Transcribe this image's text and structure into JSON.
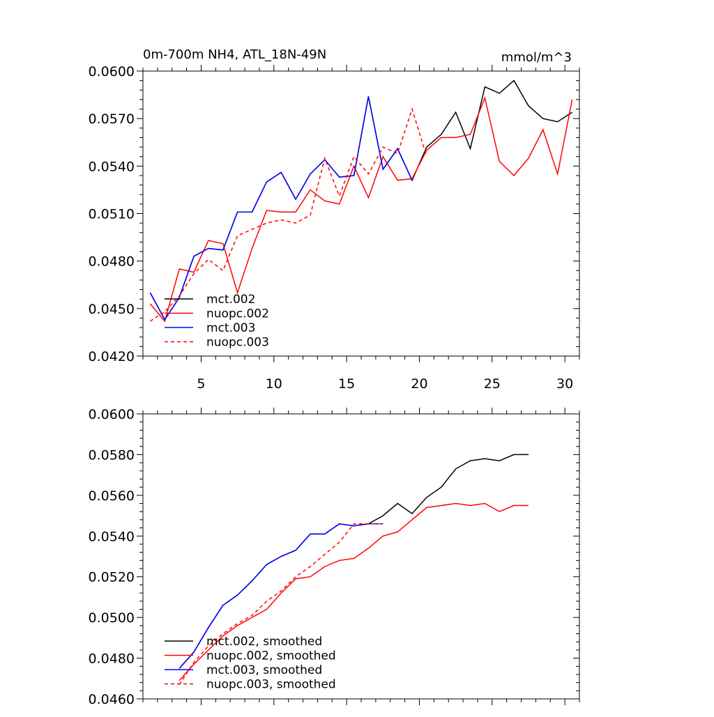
{
  "chart_data": [
    {
      "type": "line",
      "title": "0m-700m NH4, ATL_18N-49N",
      "units": "mmol/m^3",
      "xlim": [
        1,
        31
      ],
      "ylim": [
        0.042,
        0.06
      ],
      "xticks": [
        5,
        10,
        15,
        20,
        25,
        30
      ],
      "xtick_labels": [
        "5",
        "10",
        "15",
        "20",
        "25",
        "30"
      ],
      "yticks": [
        0.042,
        0.045,
        0.048,
        0.051,
        0.054,
        0.057,
        0.06
      ],
      "ytick_labels": [
        "0.0420",
        "0.0450",
        "0.0480",
        "0.0510",
        "0.0540",
        "0.0570",
        "0.0600"
      ],
      "legend_location": "bottom-left",
      "series": [
        {
          "name": "mct.002",
          "color": "#000000",
          "dash": "solid",
          "x": [
            1.5,
            2.5,
            3.5,
            4.5,
            5.5,
            6.5,
            7.5,
            8.5,
            9.5,
            10.5,
            11.5,
            12.5,
            13.5,
            14.5,
            15.5,
            16.5,
            17.5,
            18.5,
            19.5,
            20.5,
            21.5,
            22.5,
            23.5,
            24.5,
            25.5,
            26.5,
            27.5,
            28.5,
            29.5,
            30.5
          ],
          "values": [
            0.046,
            0.0443,
            0.0457,
            0.0483,
            0.0488,
            0.0487,
            0.0511,
            0.0511,
            0.053,
            0.0536,
            0.0519,
            0.0535,
            0.0544,
            0.0533,
            0.0534,
            0.0584,
            0.0538,
            0.0551,
            0.0531,
            0.0552,
            0.056,
            0.0574,
            0.0551,
            0.059,
            0.0586,
            0.0594,
            0.0578,
            0.057,
            0.0568,
            0.0574
          ]
        },
        {
          "name": "nuopc.002",
          "color": "#ff0000",
          "dash": "solid",
          "x": [
            1.5,
            2.5,
            3.5,
            4.5,
            5.5,
            6.5,
            7.5,
            8.5,
            9.5,
            10.5,
            11.5,
            12.5,
            13.5,
            14.5,
            15.5,
            16.5,
            17.5,
            18.5,
            19.5,
            20.5,
            21.5,
            22.5,
            23.5,
            24.5,
            25.5,
            26.5,
            27.5,
            28.5,
            29.5,
            30.5
          ],
          "values": [
            0.0453,
            0.0442,
            0.0475,
            0.0473,
            0.0493,
            0.0491,
            0.046,
            0.0488,
            0.0512,
            0.0511,
            0.0511,
            0.0525,
            0.0518,
            0.0516,
            0.054,
            0.052,
            0.0546,
            0.0531,
            0.0532,
            0.055,
            0.0558,
            0.0558,
            0.056,
            0.0583,
            0.0543,
            0.0534,
            0.0545,
            0.0563,
            0.0535,
            0.0582
          ]
        },
        {
          "name": "mct.003",
          "color": "#0000ff",
          "dash": "solid",
          "x": [
            1.5,
            2.5,
            3.5,
            4.5,
            5.5,
            6.5,
            7.5,
            8.5,
            9.5,
            10.5,
            11.5,
            12.5,
            13.5,
            14.5,
            15.5,
            16.5,
            17.5,
            18.5,
            19.5
          ],
          "values": [
            0.046,
            0.0443,
            0.0457,
            0.0483,
            0.0488,
            0.0487,
            0.0511,
            0.0511,
            0.053,
            0.0536,
            0.0519,
            0.0535,
            0.0544,
            0.0533,
            0.0534,
            0.0584,
            0.0538,
            0.0551,
            0.0531
          ]
        },
        {
          "name": "nuopc.003",
          "color": "#ff0000",
          "dash": "dashed",
          "x": [
            1.5,
            2.5,
            3.5,
            4.5,
            5.5,
            6.5,
            7.5,
            8.5,
            9.5,
            10.5,
            11.5,
            12.5,
            13.5,
            14.5,
            15.5,
            16.5,
            17.5,
            18.5,
            19.5,
            20.5
          ],
          "values": [
            0.0442,
            0.0448,
            0.0458,
            0.0472,
            0.0481,
            0.0474,
            0.0496,
            0.05,
            0.0504,
            0.0506,
            0.0504,
            0.0509,
            0.0545,
            0.0521,
            0.0546,
            0.0535,
            0.0552,
            0.0548,
            0.0576,
            0.0546
          ]
        }
      ]
    },
    {
      "type": "line",
      "xlim": [
        1,
        31
      ],
      "ylim": [
        0.046,
        0.06
      ],
      "xticks": [
        5,
        10,
        15,
        20,
        25,
        30
      ],
      "yticks": [
        0.046,
        0.048,
        0.05,
        0.052,
        0.054,
        0.056,
        0.058,
        0.06
      ],
      "ytick_labels": [
        "0.0460",
        "0.0480",
        "0.0500",
        "0.0520",
        "0.0540",
        "0.0560",
        "0.0580",
        "0.0600"
      ],
      "legend_location": "bottom-left",
      "series": [
        {
          "name": "mct.002, smoothed",
          "color": "#000000",
          "dash": "solid",
          "x": [
            3.5,
            4.5,
            5.5,
            6.5,
            7.5,
            8.5,
            9.5,
            10.5,
            11.5,
            12.5,
            13.5,
            14.5,
            15.5,
            16.5,
            17.5,
            18.5,
            19.5,
            20.5,
            21.5,
            22.5,
            23.5,
            24.5,
            25.5,
            26.5,
            27.5
          ],
          "values": [
            0.0475,
            0.0483,
            0.0495,
            0.0506,
            0.0511,
            0.0518,
            0.0526,
            0.053,
            0.0533,
            0.0541,
            0.0541,
            0.0546,
            0.0545,
            0.0546,
            0.055,
            0.0556,
            0.0551,
            0.0559,
            0.0564,
            0.0573,
            0.0577,
            0.0578,
            0.0577,
            0.058,
            0.058
          ]
        },
        {
          "name": "nuopc.002, smoothed",
          "color": "#ff0000",
          "dash": "solid",
          "x": [
            3.5,
            4.5,
            5.5,
            6.5,
            7.5,
            8.5,
            9.5,
            10.5,
            11.5,
            12.5,
            13.5,
            14.5,
            15.5,
            16.5,
            17.5,
            18.5,
            19.5,
            20.5,
            21.5,
            22.5,
            23.5,
            24.5,
            25.5,
            26.5,
            27.5
          ],
          "values": [
            0.0469,
            0.0477,
            0.0484,
            0.0491,
            0.0496,
            0.05,
            0.0504,
            0.0512,
            0.0519,
            0.052,
            0.0525,
            0.0528,
            0.0529,
            0.0534,
            0.054,
            0.0542,
            0.0548,
            0.0554,
            0.0555,
            0.0556,
            0.0555,
            0.0556,
            0.0552,
            0.0555,
            0.0555
          ]
        },
        {
          "name": "mct.003, smoothed",
          "color": "#0000ff",
          "dash": "solid",
          "x": [
            3.5,
            4.5,
            5.5,
            6.5,
            7.5,
            8.5,
            9.5,
            10.5,
            11.5,
            12.5,
            13.5,
            14.5,
            15.5,
            16.5,
            17.5
          ],
          "values": [
            0.0475,
            0.0483,
            0.0495,
            0.0506,
            0.0511,
            0.0518,
            0.0526,
            0.053,
            0.0533,
            0.0541,
            0.0541,
            0.0546,
            0.0545,
            0.0546,
            0.0546
          ]
        },
        {
          "name": "nuopc.003, smoothed",
          "color": "#ff0000",
          "dash": "dashed",
          "x": [
            3.5,
            4.5,
            5.5,
            6.5,
            7.5,
            8.5,
            9.5,
            10.5,
            11.5,
            12.5,
            13.5,
            14.5,
            15.5,
            16.5,
            17.5
          ],
          "values": [
            0.0467,
            0.0478,
            0.0486,
            0.0492,
            0.0497,
            0.0501,
            0.0508,
            0.0513,
            0.052,
            0.0525,
            0.0531,
            0.0537,
            0.0546,
            0.0546,
            0.0546
          ]
        }
      ]
    }
  ]
}
